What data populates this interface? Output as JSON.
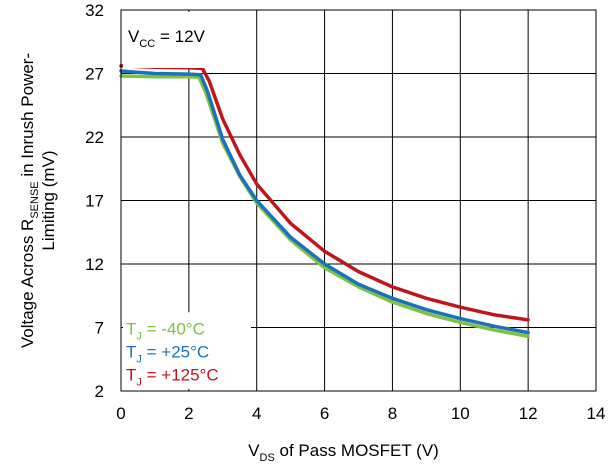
{
  "chart_data": {
    "type": "line",
    "title": "",
    "annotation": {
      "prefix": "V",
      "sub": "CC",
      "suffix": " = 12V"
    },
    "xlabel": {
      "prefix": "V",
      "sub": "DS",
      "suffix": " of Pass MOSFET (V)"
    },
    "ylabel": {
      "line1_prefix": "Voltage Across R",
      "line1_sub": "SENSE",
      "line1_suffix": " in Inrush Power-",
      "line2": "Limiting (mV)"
    },
    "xlim": [
      0,
      14
    ],
    "ylim": [
      2,
      32
    ],
    "xticks": [
      0,
      2,
      4,
      6,
      8,
      10,
      12,
      14
    ],
    "yticks": [
      2,
      7,
      12,
      17,
      22,
      27,
      32
    ],
    "grid": true,
    "legend_position": "bottom-left",
    "series": [
      {
        "name": "TJ = -40°C",
        "label_prefix": "T",
        "label_sub": "J",
        "label_suffix": " = -40°C",
        "color": "#7dc242",
        "points": [
          [
            0,
            26.8
          ],
          [
            1,
            26.75
          ],
          [
            2,
            26.75
          ],
          [
            2.3,
            26.7
          ],
          [
            2.5,
            25.5
          ],
          [
            3,
            21.5
          ],
          [
            3.5,
            18.9
          ],
          [
            4,
            16.8
          ],
          [
            5,
            13.9
          ],
          [
            6,
            11.7
          ],
          [
            7,
            10.2
          ],
          [
            8,
            9.0
          ],
          [
            9,
            8.1
          ],
          [
            10,
            7.4
          ],
          [
            11,
            6.8
          ],
          [
            12,
            6.3
          ]
        ]
      },
      {
        "name": "TJ = +25°C",
        "label_prefix": "T",
        "label_sub": "J",
        "label_suffix": " = +25°C",
        "color": "#1a73ba",
        "points": [
          [
            0,
            27.2
          ],
          [
            1,
            27.0
          ],
          [
            2,
            26.95
          ],
          [
            2.35,
            26.9
          ],
          [
            2.55,
            25.6
          ],
          [
            3,
            21.8
          ],
          [
            3.5,
            19.0
          ],
          [
            4,
            17.0
          ],
          [
            5,
            14.1
          ],
          [
            6,
            12.0
          ],
          [
            7,
            10.4
          ],
          [
            8,
            9.3
          ],
          [
            9,
            8.4
          ],
          [
            10,
            7.7
          ],
          [
            11,
            7.1
          ],
          [
            12,
            6.6
          ]
        ]
      },
      {
        "name": "TJ = +125°C",
        "label_prefix": "T",
        "label_sub": "J",
        "label_suffix": " = +125°C",
        "color": "#c0151b",
        "points": [
          [
            0,
            27.6
          ],
          [
            1,
            27.5
          ],
          [
            2,
            27.45
          ],
          [
            2.4,
            27.4
          ],
          [
            2.6,
            26.4
          ],
          [
            3,
            23.4
          ],
          [
            3.5,
            20.6
          ],
          [
            4,
            18.3
          ],
          [
            5,
            15.2
          ],
          [
            6,
            13.0
          ],
          [
            7,
            11.4
          ],
          [
            8,
            10.2
          ],
          [
            9,
            9.3
          ],
          [
            10,
            8.6
          ],
          [
            11,
            8.0
          ],
          [
            12,
            7.6
          ]
        ]
      }
    ]
  }
}
